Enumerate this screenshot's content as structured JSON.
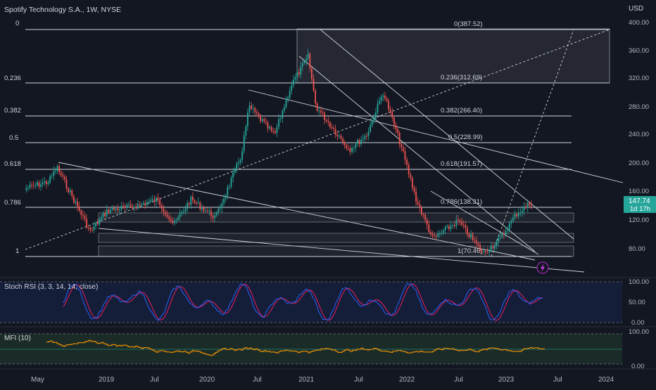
{
  "header": {
    "title": "Spotify Technology S.A., 1W, NYSE",
    "currency": "USD"
  },
  "price_axis": {
    "labels": [
      "400.00",
      "360.00",
      "320.00",
      "280.00",
      "240.00",
      "200.00",
      "160.00",
      "120.00",
      "80.00"
    ]
  },
  "last_price": {
    "value": "147.74",
    "countdown": "1d 17h"
  },
  "fib": {
    "levels": [
      {
        "ratio": "0",
        "label": "0(387.52)"
      },
      {
        "ratio": "0.236",
        "label": "0.236(312.69)"
      },
      {
        "ratio": "0.382",
        "label": "0.382(266.40)"
      },
      {
        "ratio": "0.5",
        "label": "0.5(228.99)"
      },
      {
        "ratio": "0.618",
        "label": "0.618(191.57)"
      },
      {
        "ratio": "0.786",
        "label": "0.786(138.31)"
      },
      {
        "ratio": "1",
        "label": "1(70.46)"
      }
    ]
  },
  "time_axis": {
    "labels": [
      "May",
      "2019",
      "Jul",
      "2020",
      "Jul",
      "2021",
      "Jul",
      "2022",
      "Jul",
      "2023",
      "Jul",
      "2024"
    ]
  },
  "stoch": {
    "title": "Stoch RSI (3, 3, 14, 14, close)",
    "axis": [
      "100.00",
      "50.00",
      "0.00"
    ]
  },
  "mfi": {
    "title": "MFI (10)",
    "axis": [
      "100.00",
      "0.00"
    ]
  },
  "colors": {
    "background": "#131722",
    "candle_up": "#26a69a",
    "candle_down": "#ef5350",
    "stoch_k": "#2962ff",
    "stoch_d": "#e91e63",
    "mfi_line": "#ff9800",
    "last_price_bg": "#26a69a",
    "alert_icon": "#9c27b0"
  },
  "chart_data": {
    "type": "candlestick",
    "title": "Spotify Technology S.A., 1W, NYSE",
    "y_unit": "USD",
    "ylim": [
      60,
      400
    ],
    "x_range": [
      "2018-05",
      "2024-01"
    ],
    "price_path": [
      {
        "date": "2018-04",
        "price": 165
      },
      {
        "date": "2018-07",
        "price": 175
      },
      {
        "date": "2018-08",
        "price": 195
      },
      {
        "date": "2018-10",
        "price": 150
      },
      {
        "date": "2018-12",
        "price": 105
      },
      {
        "date": "2019-02",
        "price": 135
      },
      {
        "date": "2019-05",
        "price": 140
      },
      {
        "date": "2019-08",
        "price": 150
      },
      {
        "date": "2019-10",
        "price": 115
      },
      {
        "date": "2019-12",
        "price": 150
      },
      {
        "date": "2020-03",
        "price": 125
      },
      {
        "date": "2020-06",
        "price": 210
      },
      {
        "date": "2020-07",
        "price": 280
      },
      {
        "date": "2020-10",
        "price": 240
      },
      {
        "date": "2020-12",
        "price": 310
      },
      {
        "date": "2021-02",
        "price": 350
      },
      {
        "date": "2021-03",
        "price": 280
      },
      {
        "date": "2021-05",
        "price": 250
      },
      {
        "date": "2021-07",
        "price": 220
      },
      {
        "date": "2021-09",
        "price": 240
      },
      {
        "date": "2021-11",
        "price": 300
      },
      {
        "date": "2022-01",
        "price": 230
      },
      {
        "date": "2022-03",
        "price": 150
      },
      {
        "date": "2022-05",
        "price": 95
      },
      {
        "date": "2022-08",
        "price": 120
      },
      {
        "date": "2022-11",
        "price": 75
      },
      {
        "date": "2023-01",
        "price": 95
      },
      {
        "date": "2023-03",
        "price": 130
      },
      {
        "date": "2023-05",
        "price": 147.74
      }
    ],
    "fib_retracement": [
      387.52,
      312.69,
      266.4,
      228.99,
      191.57,
      138.31,
      70.46
    ],
    "indicators": [
      "Stoch RSI (3, 3, 14, 14, close)",
      "MFI (10)"
    ]
  }
}
